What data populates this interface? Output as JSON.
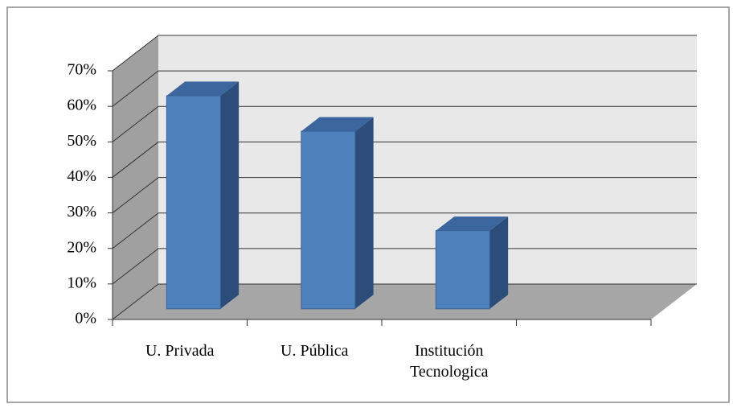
{
  "chart_data": {
    "type": "bar3d",
    "categories": [
      "U. Privada",
      "U. Pública",
      "Institución Tecnologica",
      null
    ],
    "values": [
      60,
      50,
      22,
      null
    ],
    "color": "#4f81bd",
    "ylim": [
      0,
      70
    ],
    "yticks": [
      {
        "value": 0,
        "label": "0%"
      },
      {
        "value": 10,
        "label": "10%"
      },
      {
        "value": 20,
        "label": "20%"
      },
      {
        "value": 30,
        "label": "30%"
      },
      {
        "value": 40,
        "label": "40%"
      },
      {
        "value": 50,
        "label": "50%"
      },
      {
        "value": 60,
        "label": "60%"
      },
      {
        "value": 70,
        "label": "70%"
      }
    ],
    "grid": true
  }
}
